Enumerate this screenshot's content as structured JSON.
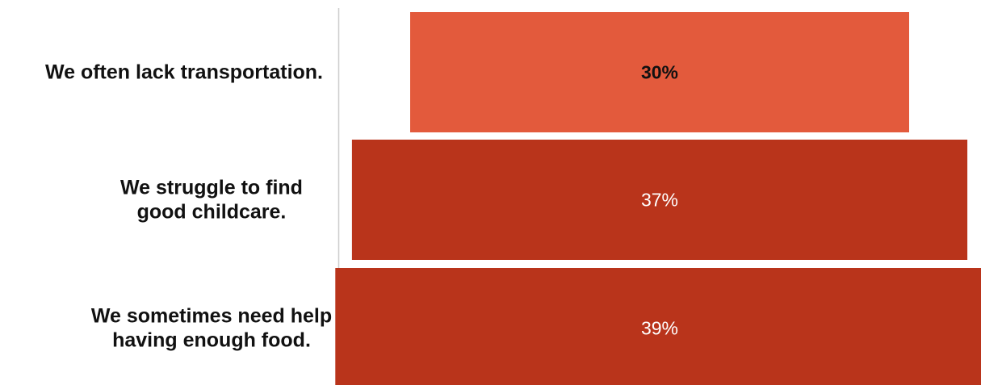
{
  "chart_data": {
    "type": "bar",
    "orientation": "horizontal-funnel",
    "categories": [
      [
        "We often lack transportation."
      ],
      [
        "We struggle to find",
        "good childcare."
      ],
      [
        "We sometimes need help",
        "having enough food."
      ]
    ],
    "values": [
      30,
      37,
      39
    ],
    "value_labels": [
      "30%",
      "37%",
      "39%"
    ],
    "bar_colors": [
      "#e35a3c",
      "#b9341b",
      "#b9341b"
    ],
    "label_colors": [
      "#111111",
      "#ffffff",
      "#ffffff"
    ],
    "label_bold": [
      true,
      false,
      false
    ],
    "axis_line_color": "#cccccc",
    "title": "",
    "xlabel": "",
    "ylabel": "",
    "grid": false,
    "legend": "none"
  }
}
